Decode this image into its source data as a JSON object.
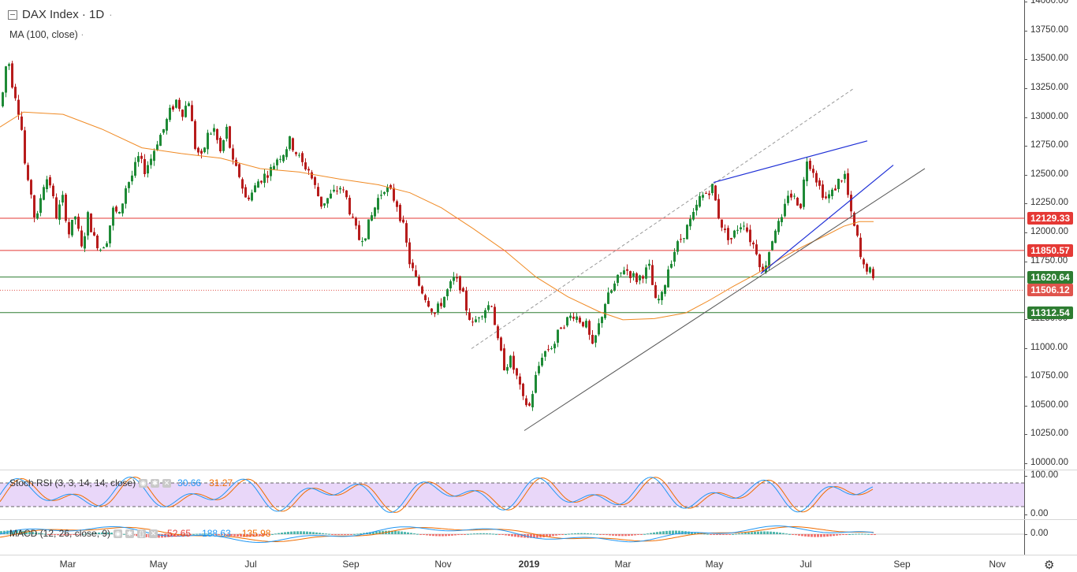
{
  "header": {
    "symbol_title": "DAX Index · 1D",
    "collapse_icon": "minus-square-icon",
    "menu_dots": "·",
    "ma_label": "MA (100, close)",
    "ma_dots": "·"
  },
  "colors": {
    "up": "#1e8a36",
    "down": "#b71c1c",
    "ma": "#f08a24",
    "trend_blue": "#1e2fd6",
    "trend_gray": "#555555",
    "res_red": "#e53935",
    "sup_green": "#2e7d32",
    "price_badge": "#e0544c",
    "rsi_k": "#2196f3",
    "rsi_d": "#ef6c00",
    "rsi_band": "#e1c9f7"
  },
  "price_axis": {
    "ticks": [
      "14000.00",
      "13750.00",
      "13500.00",
      "13250.00",
      "13000.00",
      "12750.00",
      "12500.00",
      "12250.00",
      "12000.00",
      "11750.00",
      "11250.00",
      "11000.00",
      "10750.00",
      "10500.00",
      "10250.00",
      "10000.00"
    ],
    "ymin": 10000,
    "ymax": 14000
  },
  "levels": [
    {
      "label": "12129.33",
      "value": 12129.33,
      "kind": "resistance"
    },
    {
      "label": "11850.57",
      "value": 11850.57,
      "kind": "resistance"
    },
    {
      "label": "11620.64",
      "value": 11620.64,
      "kind": "support"
    },
    {
      "label": "11506.12",
      "value": 11506.12,
      "kind": "last"
    },
    {
      "label": "11312.54",
      "value": 11312.54,
      "kind": "support"
    }
  ],
  "rsi": {
    "label": "Stoch RSI (3, 3, 14, 14, close)",
    "k_value": "30.66",
    "d_value": "31.27",
    "axis": [
      "100.00",
      "0.00"
    ],
    "band": [
      20,
      80
    ]
  },
  "macd": {
    "label": "MACD (12, 26, close, 9)",
    "hist_value": "-52.65",
    "macd_value": "-188.63",
    "signal_value": "-135.98",
    "axis": [
      "0.00"
    ]
  },
  "time_axis": [
    {
      "label": "Mar",
      "bold": false
    },
    {
      "label": "May",
      "bold": false
    },
    {
      "label": "Jul",
      "bold": false
    },
    {
      "label": "Sep",
      "bold": false
    },
    {
      "label": "Nov",
      "bold": false
    },
    {
      "label": "2019",
      "bold": true
    },
    {
      "label": "Mar",
      "bold": false
    },
    {
      "label": "May",
      "bold": false
    },
    {
      "label": "Jul",
      "bold": false
    },
    {
      "label": "Sep",
      "bold": false
    },
    {
      "label": "Nov",
      "bold": false
    }
  ],
  "settings_icon": "gear-icon",
  "chart_data": {
    "type": "candlestick",
    "title": "DAX Index · 1D",
    "series": [
      {
        "name": "DAX Index",
        "anchors": [
          [
            0,
            13100
          ],
          [
            8,
            13560
          ],
          [
            14,
            13300
          ],
          [
            20,
            13150
          ],
          [
            26,
            12900
          ],
          [
            32,
            12450
          ],
          [
            38,
            12350
          ],
          [
            44,
            12050
          ],
          [
            52,
            12400
          ],
          [
            60,
            12500
          ],
          [
            70,
            12150
          ],
          [
            78,
            12300
          ],
          [
            86,
            12000
          ],
          [
            94,
            12150
          ],
          [
            102,
            11860
          ],
          [
            110,
            12150
          ],
          [
            118,
            11950
          ],
          [
            126,
            11870
          ],
          [
            134,
            11950
          ],
          [
            142,
            12200
          ],
          [
            150,
            12150
          ],
          [
            158,
            12400
          ],
          [
            166,
            12500
          ],
          [
            174,
            12650
          ],
          [
            182,
            12550
          ],
          [
            190,
            12650
          ],
          [
            198,
            12800
          ],
          [
            206,
            12900
          ],
          [
            214,
            13050
          ],
          [
            222,
            13150
          ],
          [
            230,
            13050
          ],
          [
            238,
            13150
          ],
          [
            246,
            12750
          ],
          [
            254,
            12650
          ],
          [
            262,
            12850
          ],
          [
            270,
            12900
          ],
          [
            278,
            12700
          ],
          [
            286,
            12900
          ],
          [
            294,
            12600
          ],
          [
            302,
            12500
          ],
          [
            310,
            12300
          ],
          [
            318,
            12350
          ],
          [
            326,
            12450
          ],
          [
            334,
            12500
          ],
          [
            342,
            12550
          ],
          [
            350,
            12650
          ],
          [
            358,
            12700
          ],
          [
            366,
            12800
          ],
          [
            374,
            12700
          ],
          [
            382,
            12600
          ],
          [
            390,
            12550
          ],
          [
            398,
            12400
          ],
          [
            406,
            12250
          ],
          [
            414,
            12300
          ],
          [
            422,
            12350
          ],
          [
            430,
            12400
          ],
          [
            438,
            12300
          ],
          [
            446,
            12100
          ],
          [
            454,
            11950
          ],
          [
            462,
            12000
          ],
          [
            470,
            12150
          ],
          [
            478,
            12300
          ],
          [
            486,
            12400
          ],
          [
            494,
            12350
          ],
          [
            502,
            12250
          ],
          [
            510,
            12050
          ],
          [
            518,
            11750
          ],
          [
            526,
            11600
          ],
          [
            534,
            11500
          ],
          [
            542,
            11400
          ],
          [
            550,
            11300
          ],
          [
            558,
            11400
          ],
          [
            566,
            11500
          ],
          [
            574,
            11600
          ],
          [
            582,
            11550
          ],
          [
            590,
            11350
          ],
          [
            598,
            11200
          ],
          [
            606,
            11300
          ],
          [
            614,
            11350
          ],
          [
            622,
            11400
          ],
          [
            630,
            11050
          ],
          [
            638,
            10850
          ],
          [
            646,
            10900
          ],
          [
            654,
            10750
          ],
          [
            662,
            10550
          ],
          [
            670,
            10500
          ],
          [
            678,
            10750
          ],
          [
            686,
            10950
          ],
          [
            694,
            11000
          ],
          [
            702,
            11050
          ],
          [
            710,
            11200
          ],
          [
            718,
            11250
          ],
          [
            726,
            11300
          ],
          [
            734,
            11250
          ],
          [
            742,
            11200
          ],
          [
            750,
            11000
          ],
          [
            758,
            11200
          ],
          [
            766,
            11400
          ],
          [
            774,
            11500
          ],
          [
            782,
            11600
          ],
          [
            790,
            11700
          ],
          [
            798,
            11650
          ],
          [
            806,
            11600
          ],
          [
            814,
            11650
          ],
          [
            822,
            11700
          ],
          [
            830,
            11400
          ],
          [
            838,
            11450
          ],
          [
            846,
            11700
          ],
          [
            854,
            11850
          ],
          [
            862,
            11950
          ],
          [
            870,
            12050
          ],
          [
            878,
            12150
          ],
          [
            886,
            12300
          ],
          [
            894,
            12350
          ],
          [
            902,
            12400
          ],
          [
            910,
            12150
          ],
          [
            918,
            12000
          ],
          [
            926,
            11950
          ],
          [
            934,
            12050
          ],
          [
            942,
            12100
          ],
          [
            950,
            11950
          ],
          [
            958,
            11850
          ],
          [
            966,
            11650
          ],
          [
            974,
            11850
          ],
          [
            982,
            12050
          ],
          [
            990,
            12100
          ],
          [
            998,
            12350
          ],
          [
            1006,
            12300
          ],
          [
            1014,
            12250
          ],
          [
            1022,
            12650
          ],
          [
            1030,
            12550
          ],
          [
            1038,
            12400
          ],
          [
            1046,
            12300
          ],
          [
            1054,
            12350
          ],
          [
            1062,
            12450
          ],
          [
            1070,
            12500
          ],
          [
            1078,
            12150
          ],
          [
            1086,
            11950
          ],
          [
            1092,
            11700
          ],
          [
            1098,
            11700
          ],
          [
            1104,
            11650
          ],
          [
            1108,
            11506
          ]
        ]
      },
      {
        "name": "MA (100, close)",
        "anchors": [
          [
            0,
            12920
          ],
          [
            30,
            13050
          ],
          [
            80,
            13030
          ],
          [
            130,
            12900
          ],
          [
            180,
            12740
          ],
          [
            230,
            12690
          ],
          [
            280,
            12650
          ],
          [
            330,
            12560
          ],
          [
            380,
            12530
          ],
          [
            430,
            12470
          ],
          [
            480,
            12420
          ],
          [
            520,
            12350
          ],
          [
            560,
            12220
          ],
          [
            600,
            12040
          ],
          [
            640,
            11850
          ],
          [
            680,
            11620
          ],
          [
            720,
            11450
          ],
          [
            760,
            11320
          ],
          [
            790,
            11250
          ],
          [
            830,
            11260
          ],
          [
            870,
            11310
          ],
          [
            900,
            11420
          ],
          [
            930,
            11540
          ],
          [
            960,
            11650
          ],
          [
            990,
            11780
          ],
          [
            1020,
            11890
          ],
          [
            1050,
            11990
          ],
          [
            1070,
            12060
          ],
          [
            1090,
            12100
          ],
          [
            1108,
            12100
          ]
        ]
      }
    ],
    "last_close": 11506.12,
    "x_labels": [
      "Mar",
      "May",
      "Jul",
      "Sep",
      "Nov",
      "2019",
      "Mar",
      "May",
      "Jul",
      "Sep",
      "Nov"
    ],
    "ylim": [
      10000,
      14000
    ],
    "grid": false
  }
}
